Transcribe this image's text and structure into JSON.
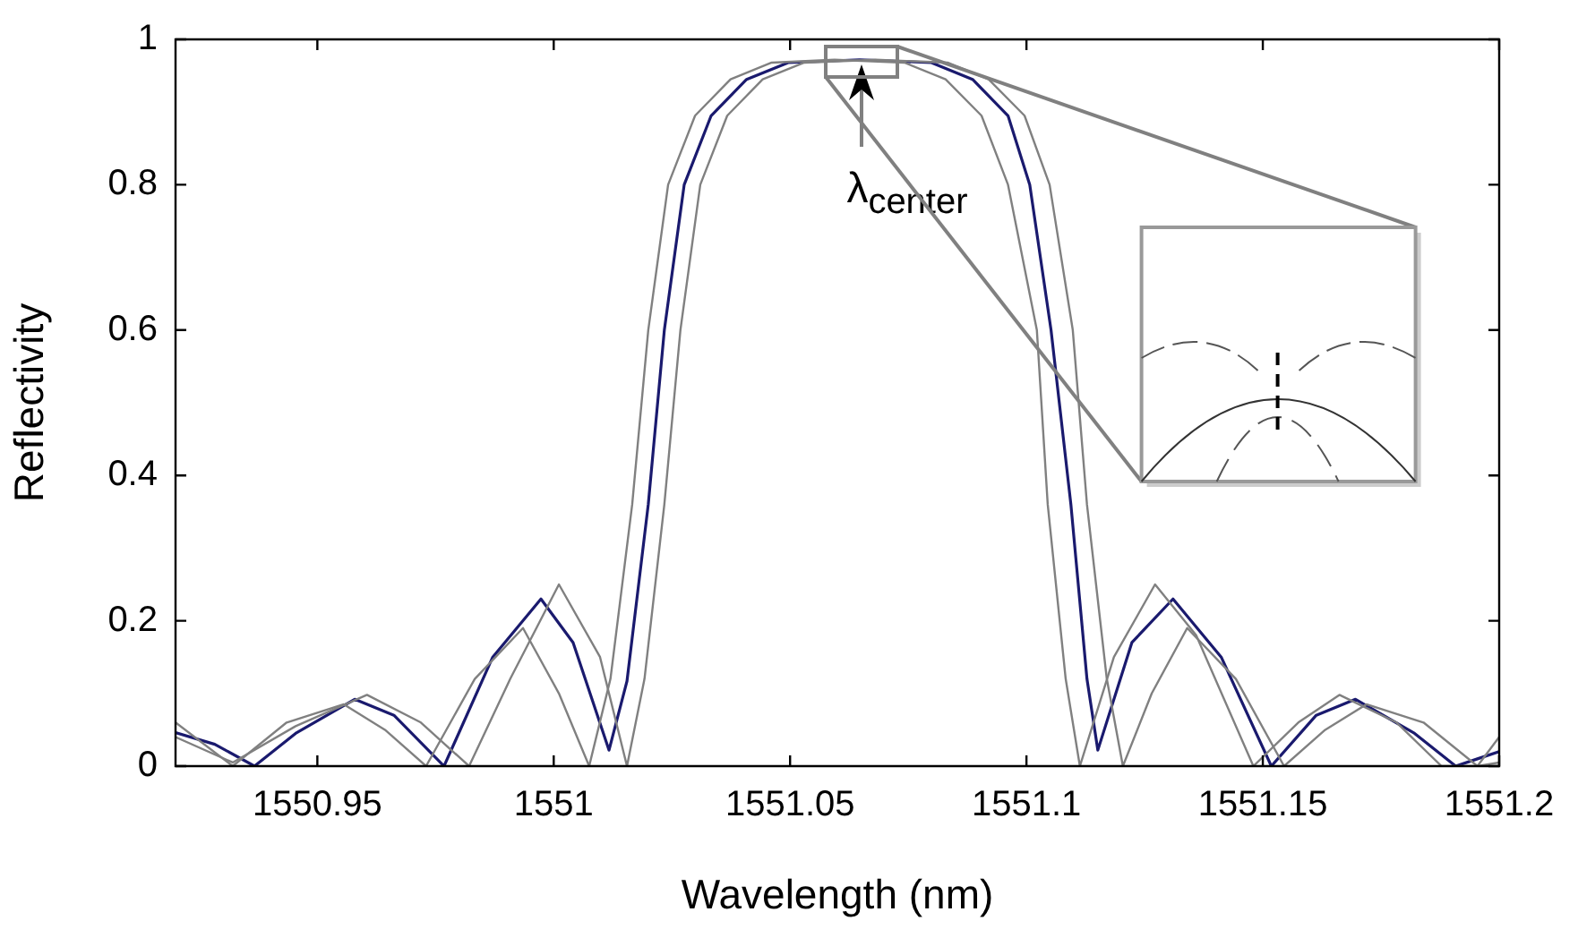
{
  "chart_data": {
    "type": "line",
    "xlabel": "Wavelength (nm)",
    "ylabel": "Reflectivity",
    "xlim": [
      1550.92,
      1551.2
    ],
    "ylim": [
      0,
      1
    ],
    "xticks": [
      1550.95,
      1551,
      1551.05,
      1551.1,
      1551.15,
      1551.2
    ],
    "yticks": [
      0,
      0.2,
      0.4,
      0.6,
      0.8,
      1
    ],
    "grid": false,
    "marker": "none",
    "line_style": "solid",
    "annotations": [
      {
        "text": "λ$_{center}$",
        "x": 1551.065,
        "y": 0.97
      }
    ],
    "series": [
      {
        "color": "#808080",
        "x": [
          1550.92,
          1550.9321,
          1550.9435,
          1550.9556,
          1550.9643,
          1550.973,
          1550.9833,
          1550.9935,
          1551.0011,
          1551.0075,
          1551.012,
          1551.0166,
          1551.02,
          1551.0242,
          1551.0299,
          1551.0374,
          1551.0461,
          1551.0594,
          1551.0742,
          1551.0829,
          1551.0905,
          1551.0961,
          1551.1022,
          1551.1045,
          1551.1083,
          1551.1113,
          1551.1185,
          1551.1272,
          1551.1359,
          1551.148,
          1551.1575,
          1551.1662,
          1551.1783,
          1551.1878,
          1551.1954,
          1551.2
        ],
        "values": [
          0.06,
          0,
          0.06,
          0.085,
          0.05,
          0,
          0.12,
          0.19,
          0.1,
          0,
          0.12,
          0.36,
          0.6,
          0.8,
          0.895,
          0.945,
          0.968,
          0.972,
          0.968,
          0.945,
          0.895,
          0.8,
          0.6,
          0.36,
          0.12,
          0,
          0.15,
          0.25,
          0.18,
          0,
          0.06,
          0.098,
          0.06,
          0,
          0,
          0.04
        ]
      },
      {
        "color": "#808080",
        "x": [
          1550.92,
          1550.9321,
          1550.9454,
          1550.9605,
          1550.9719,
          1550.9821,
          1550.9908,
          1551.0011,
          1551.0098,
          1551.0155,
          1551.0192,
          1551.0234,
          1551.0268,
          1551.031,
          1551.0367,
          1551.0442,
          1551.053,
          1551.0681,
          1551.0833,
          1551.092,
          1551.0996,
          1551.1049,
          1551.1098,
          1551.1128,
          1551.117,
          1551.1204,
          1551.1265,
          1551.134,
          1551.1443,
          1551.1545,
          1551.1632,
          1551.1719,
          1551.184,
          1551.1954,
          1551.2
        ],
        "values": [
          0.04,
          0.005,
          0.055,
          0.098,
          0.06,
          0,
          0.12,
          0.25,
          0.15,
          0,
          0.12,
          0.36,
          0.6,
          0.8,
          0.895,
          0.945,
          0.968,
          0.972,
          0.968,
          0.945,
          0.895,
          0.8,
          0.6,
          0.36,
          0.12,
          0,
          0.1,
          0.19,
          0.12,
          0,
          0.05,
          0.085,
          0.06,
          0,
          0.005
        ]
      },
      {
        "color": "#1a1a6e",
        "x": [
          1550.92,
          1550.9283,
          1550.9367,
          1550.9454,
          1550.9579,
          1550.9662,
          1550.9768,
          1550.9871,
          1550.9973,
          1551.0041,
          1551.0117,
          1551.0155,
          1551.02,
          1551.0234,
          1551.0276,
          1551.0333,
          1551.0408,
          1551.0496,
          1551.0647,
          1551.0799,
          1551.0886,
          1551.0961,
          1551.1007,
          1551.1052,
          1551.1094,
          1551.1128,
          1551.1151,
          1551.1223,
          1551.131,
          1551.1412,
          1551.1518,
          1551.1613,
          1551.1696,
          1551.1821,
          1551.1908,
          1551.1954,
          1551.2
        ],
        "values": [
          0.046,
          0.03,
          0,
          0.045,
          0.092,
          0.07,
          0,
          0.15,
          0.23,
          0.17,
          0.022,
          0.117,
          0.36,
          0.6,
          0.8,
          0.895,
          0.945,
          0.968,
          0.972,
          0.968,
          0.945,
          0.895,
          0.8,
          0.6,
          0.36,
          0.12,
          0.022,
          0.17,
          0.23,
          0.15,
          0,
          0.07,
          0.092,
          0.045,
          0,
          0.01,
          0.02
        ]
      }
    ]
  }
}
